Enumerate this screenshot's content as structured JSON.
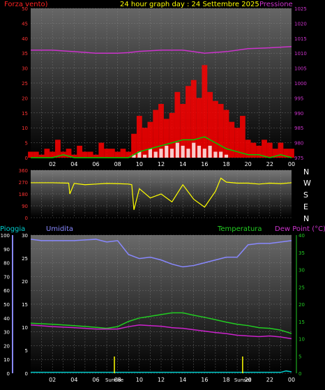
{
  "header": {
    "left_label": "Forza vento)",
    "title": "24 hour graph day : 24 Settembre 2025",
    "right_label": "Pressione"
  },
  "wind_dir_labels": [
    "N",
    "W",
    "S",
    "E",
    "N"
  ],
  "bottom_header": {
    "rain": "Pioggia",
    "humidity": "Umidita",
    "temperature": "Temperatura",
    "dewpoint": "Dew Point (°C)"
  },
  "sun": {
    "sunrise": "Sunrise",
    "sunset": "Sunset"
  },
  "colors": {
    "wind": "#ff0000",
    "gust_fill": "#ff0000",
    "avg_wind": "#00cc00",
    "min_wind": "#ffffff",
    "pressure": "#cc33cc",
    "direction": "#ffff00",
    "humidity": "#8888ff",
    "temperature": "#22cc22",
    "dewpoint": "#cc22cc",
    "rain": "#00cccc"
  },
  "chart_data": [
    {
      "type": "area",
      "title": "24 hour graph day : 24 Settembre 2025",
      "x_ticks": [
        "02",
        "04",
        "06",
        "08",
        "10",
        "12",
        "14",
        "16",
        "18",
        "20",
        "22",
        "00"
      ],
      "y_left_label": "Forza vento)",
      "y_left_ticks": [
        0,
        5,
        10,
        15,
        20,
        25,
        30,
        35,
        40,
        45,
        50
      ],
      "y_left_lim": [
        0,
        50
      ],
      "y_right_label": "Pressione",
      "y_right_ticks": [
        975,
        980,
        985,
        990,
        995,
        1000,
        1005,
        1010,
        1015,
        1020,
        1025
      ],
      "y_right_lim": [
        975,
        1025
      ],
      "x_range_hours": [
        0,
        24
      ],
      "series": [
        {
          "name": "Forza vento)",
          "axis": "left",
          "style": "bars",
          "x": [
            0,
            0.5,
            1,
            1.5,
            2,
            2.5,
            3,
            3.5,
            4,
            4.5,
            5,
            5.5,
            6,
            6.5,
            7,
            7.5,
            8,
            8.5,
            9,
            9.5,
            10,
            10.5,
            11,
            11.5,
            12,
            12.5,
            13,
            13.5,
            14,
            14.5,
            15,
            15.5,
            16,
            16.5,
            17,
            17.5,
            18,
            18.5,
            19,
            19.5,
            20,
            20.5,
            21,
            21.5,
            22,
            22.5,
            23,
            23.5,
            24
          ],
          "values": [
            2,
            2,
            1,
            3,
            2,
            6,
            2,
            3,
            1,
            4,
            2,
            2,
            1,
            5,
            3,
            3,
            2,
            3,
            2,
            8,
            14,
            10,
            12,
            16,
            18,
            13,
            15,
            22,
            18,
            24,
            26,
            20,
            31,
            22,
            19,
            18,
            16,
            12,
            10,
            14,
            6,
            5,
            4,
            6,
            5,
            3,
            5,
            3,
            3
          ]
        },
        {
          "name": "avg",
          "axis": "left",
          "style": "line",
          "x": [
            0,
            1,
            2,
            3,
            4,
            5,
            6,
            7,
            8,
            9,
            10,
            11,
            12,
            13,
            14,
            15,
            16,
            17,
            18,
            19,
            20,
            21,
            22,
            23,
            24
          ],
          "values": [
            0,
            0,
            0,
            1,
            0,
            0,
            0,
            0,
            0,
            0,
            2,
            3,
            4,
            5,
            6,
            6,
            7,
            5,
            3,
            2,
            1,
            1,
            0,
            1,
            0
          ]
        },
        {
          "name": "min",
          "axis": "left",
          "style": "bars",
          "x": [
            9.5,
            10,
            10.5,
            11,
            11.5,
            12,
            12.5,
            13,
            13.5,
            14,
            14.5,
            15,
            15.5,
            16,
            16.5,
            17,
            17.5,
            18
          ],
          "values": [
            1,
            2,
            1,
            3,
            2,
            3,
            4,
            3,
            5,
            4,
            3,
            5,
            4,
            3,
            4,
            2,
            2,
            1
          ]
        },
        {
          "name": "Pressione",
          "axis": "right",
          "style": "line",
          "x": [
            0,
            2,
            4,
            6,
            8,
            9,
            10,
            12,
            14,
            16,
            18,
            20,
            22,
            24
          ],
          "values": [
            1011,
            1011,
            1010.5,
            1010,
            1010,
            1010.2,
            1010.6,
            1011,
            1011,
            1010,
            1010.5,
            1011.5,
            1011.8,
            1012.2
          ]
        }
      ]
    },
    {
      "type": "line",
      "x_ticks": [],
      "y_ticks": [
        0,
        90,
        180,
        270,
        360
      ],
      "y_lim": [
        0,
        360
      ],
      "x_range_hours": [
        0,
        24
      ],
      "series": [
        {
          "name": "direction",
          "x": [
            0,
            2,
            3.5,
            3.6,
            4,
            5,
            6,
            7,
            8,
            9,
            9.3,
            9.5,
            10,
            11,
            12,
            13,
            14,
            15,
            16,
            17,
            17.5,
            18,
            19,
            20,
            21,
            22,
            23,
            24
          ],
          "values": [
            265,
            265,
            262,
            180,
            260,
            250,
            255,
            260,
            258,
            255,
            250,
            60,
            220,
            150,
            180,
            120,
            250,
            140,
            80,
            200,
            300,
            270,
            262,
            262,
            255,
            262,
            258,
            265
          ]
        }
      ]
    },
    {
      "type": "line",
      "x_ticks": [
        "02",
        "04",
        "06",
        "08",
        "10",
        "12",
        "14",
        "16",
        "18",
        "20",
        "22",
        "00"
      ],
      "y_left_ticks": [
        0,
        10,
        20,
        30,
        40,
        50,
        60,
        70,
        80,
        90,
        100
      ],
      "y_left_lim": [
        0,
        100
      ],
      "y_left2_ticks": [
        0,
        5,
        10,
        15,
        20,
        25,
        30
      ],
      "y_left2_lim": [
        0,
        30
      ],
      "y_right_ticks": [
        0,
        5,
        10,
        15,
        20,
        25,
        30,
        35,
        40
      ],
      "y_right_lim": [
        0,
        40
      ],
      "x_range_hours": [
        0,
        24
      ],
      "series": [
        {
          "name": "Umidita",
          "axis": "left",
          "x": [
            0,
            1,
            2,
            4,
            6,
            7,
            8,
            9,
            10,
            11,
            12,
            13,
            14,
            15,
            16,
            17,
            18,
            19,
            20,
            21,
            22,
            23,
            24
          ],
          "values": [
            97,
            96,
            96,
            96,
            97,
            95,
            96,
            86,
            83,
            84,
            82,
            79,
            77,
            78,
            80,
            82,
            84,
            84,
            93,
            94,
            94,
            95,
            96
          ]
        },
        {
          "name": "Temperatura",
          "axis": "right",
          "x": [
            0,
            2,
            4,
            6,
            7,
            8,
            9,
            10,
            11,
            12,
            13,
            14,
            15,
            16,
            17,
            18,
            19,
            20,
            21,
            22,
            23,
            24
          ],
          "values": [
            14.5,
            14.2,
            13.8,
            13.3,
            13,
            13.5,
            15,
            16,
            16.5,
            17,
            17.5,
            17.5,
            16.8,
            16.2,
            15.5,
            14.8,
            14.2,
            13.8,
            13.2,
            13,
            12.5,
            11.5
          ]
        },
        {
          "name": "Dew Point (°C)",
          "axis": "right",
          "x": [
            0,
            2,
            4,
            6,
            8,
            9,
            10,
            11,
            12,
            13,
            14,
            15,
            16,
            17,
            18,
            19,
            20,
            21,
            22,
            23,
            24
          ],
          "values": [
            14,
            13.5,
            13.2,
            12.8,
            12.8,
            13.5,
            14,
            13.8,
            13.6,
            13.2,
            13,
            12.6,
            12.2,
            11.8,
            11.5,
            11,
            10.8,
            10.6,
            10.8,
            10.5,
            10
          ]
        },
        {
          "name": "Pioggia",
          "axis": "left2",
          "x": [
            0,
            23,
            23.5,
            24
          ],
          "values": [
            0.2,
            0.2,
            0.5,
            0.3
          ]
        }
      ],
      "markers": [
        {
          "label": "Sunrise",
          "x": 7.7
        },
        {
          "label": "Sunset",
          "x": 19.5
        }
      ]
    }
  ]
}
